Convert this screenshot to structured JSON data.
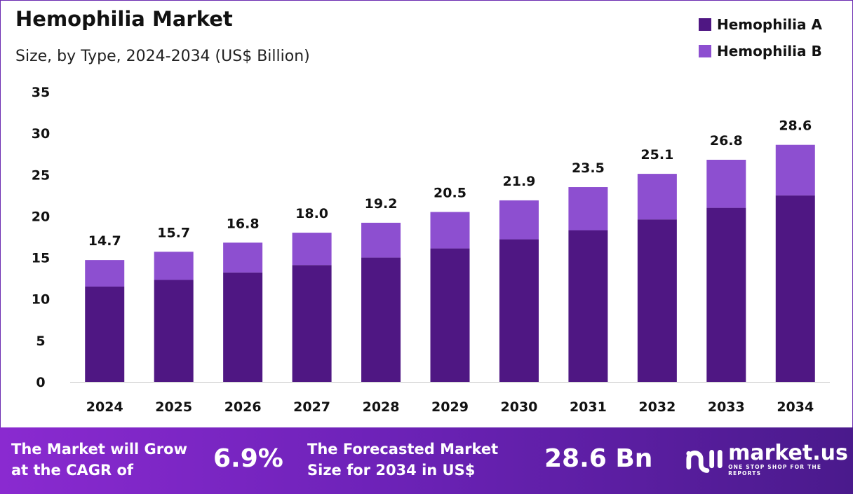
{
  "chart_data": {
    "type": "bar",
    "stacked": true,
    "title": "Hemophilia Market",
    "subtitle": "Size, by Type, 2024-2034 (US$ Billion)",
    "xlabel": "",
    "ylabel": "",
    "ylim": [
      0,
      35
    ],
    "yticks": [
      0,
      5,
      10,
      15,
      20,
      25,
      30,
      35
    ],
    "categories": [
      "2024",
      "2025",
      "2026",
      "2027",
      "2028",
      "2029",
      "2030",
      "2031",
      "2032",
      "2033",
      "2034"
    ],
    "series": [
      {
        "name": "Hemophilia A",
        "color": "#4f1783",
        "values": [
          11.5,
          12.3,
          13.2,
          14.1,
          15.0,
          16.1,
          17.2,
          18.3,
          19.6,
          21.0,
          22.5
        ]
      },
      {
        "name": "Hemophilia B",
        "color": "#8d4fd0",
        "values": [
          3.2,
          3.4,
          3.6,
          3.9,
          4.2,
          4.4,
          4.7,
          5.2,
          5.5,
          5.8,
          6.1
        ]
      }
    ],
    "totals": [
      "14.7",
      "15.7",
      "16.8",
      "18.0",
      "19.2",
      "20.5",
      "21.9",
      "23.5",
      "25.1",
      "26.8",
      "28.6"
    ],
    "grid": false,
    "legend_position": "top-right"
  },
  "banner": {
    "cagr_label_1": "The Market will Grow",
    "cagr_label_2": "at the CAGR of",
    "cagr_value": "6.9%",
    "forecast_label_1": "The Forecasted Market",
    "forecast_label_2": "Size for 2034 in US$",
    "forecast_value": "28.6 Bn",
    "logo_name": "market.us",
    "logo_tagline": "ONE STOP SHOP FOR THE REPORTS"
  }
}
